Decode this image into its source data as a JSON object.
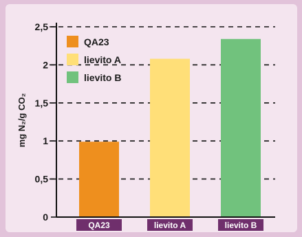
{
  "chart_data": {
    "type": "bar",
    "categories": [
      "QA23",
      "lievito A",
      "lievito B"
    ],
    "values": [
      0.99,
      2.08,
      2.34
    ],
    "colors": [
      "#ee8f1e",
      "#ffdf78",
      "#71c27d"
    ],
    "ylabel": "mg N₂/g CO₂",
    "ylim": [
      0,
      2.5
    ],
    "yticks": [
      0,
      0.5,
      1,
      1.5,
      2,
      2.5
    ],
    "ytick_labels": [
      "0",
      "0,5",
      "1",
      "1,5",
      "2",
      "2,5"
    ],
    "grid": "dashed horizontal",
    "legend_position": "top-left",
    "legend": [
      "QA23",
      "lievito A",
      "lievito B"
    ],
    "background": "#f4e5ef",
    "category_label_bg": "#6f2f6c"
  }
}
